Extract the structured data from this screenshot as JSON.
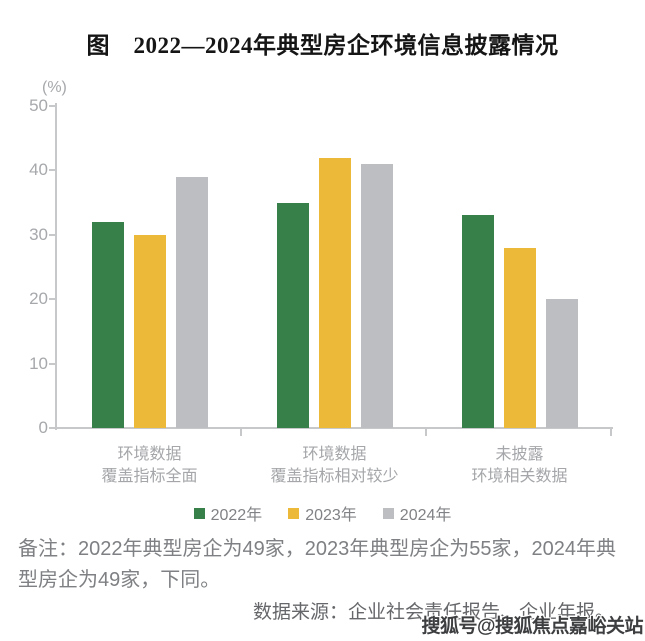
{
  "title": "图　2022—2024年典型房企环境信息披露情况",
  "chart_data": {
    "type": "bar",
    "title": "图 2022—2024年典型房企环境信息披露情况",
    "unit_label": "(%)",
    "categories": [
      {
        "lines": [
          "环境数据",
          "覆盖指标全面"
        ]
      },
      {
        "lines": [
          "环境数据",
          "覆盖指标相对较少"
        ]
      },
      {
        "lines": [
          "未披露",
          "环境相关数据"
        ]
      }
    ],
    "series": [
      {
        "name": "2022年",
        "color": "#388049",
        "values": [
          32,
          35,
          33
        ]
      },
      {
        "name": "2023年",
        "color": "#ecb938",
        "values": [
          30,
          42,
          28
        ]
      },
      {
        "name": "2024年",
        "color": "#bdbec2",
        "values": [
          39,
          41,
          20
        ]
      }
    ],
    "ylim": [
      0,
      50
    ],
    "yticks": [
      0,
      10,
      20,
      30,
      40,
      50
    ],
    "grid": false,
    "legend_position": "bottom"
  },
  "note": "备注：2022年典型房企为49家，2023年典型房企为55家，2024年典型房企为49家，下同。",
  "source": "数据来源：企业社会责任报告、企业年报。",
  "watermark": "搜狐号@搜狐焦点嘉峪关站"
}
